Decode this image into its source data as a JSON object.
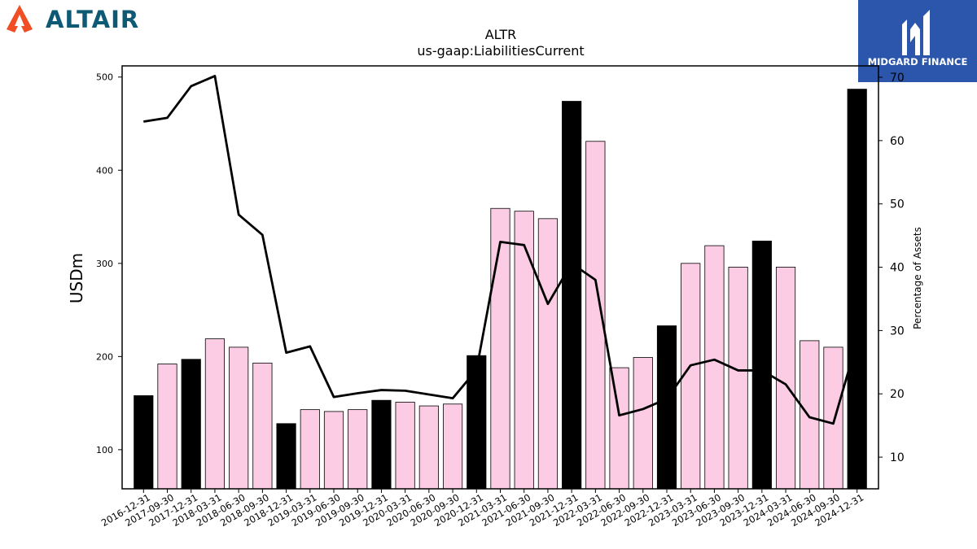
{
  "logos": {
    "left": {
      "text": "ALTAIR",
      "color": "#0e5a75",
      "icon_color": "#f04e23"
    },
    "right": {
      "text": "MIDGARD FINANCE",
      "bg_color": "#2b56ab"
    }
  },
  "chart_data": {
    "type": "bar",
    "title": "ALTR",
    "subtitle": "us-gaap:LiabilitiesCurrent",
    "ylabel": "USDm",
    "y2label": "Percentage of Assets",
    "ylim": [
      58,
      512
    ],
    "y2lim": [
      5,
      71.8
    ],
    "yticks": [
      100,
      200,
      300,
      400,
      500
    ],
    "y2ticks": [
      10,
      20,
      30,
      40,
      50,
      60,
      70
    ],
    "categories": [
      "2016-12-31",
      "2017-09-30",
      "2017-12-31",
      "2018-03-31",
      "2018-06-30",
      "2018-09-30",
      "2018-12-31",
      "2019-03-31",
      "2019-06-30",
      "2019-09-30",
      "2019-12-31",
      "2020-03-31",
      "2020-06-30",
      "2020-09-30",
      "2020-12-31",
      "2021-03-31",
      "2021-06-30",
      "2021-09-30",
      "2021-12-31",
      "2022-03-31",
      "2022-06-30",
      "2022-09-30",
      "2022-12-31",
      "2023-03-31",
      "2023-06-30",
      "2023-09-30",
      "2023-12-31",
      "2024-03-31",
      "2024-06-30",
      "2024-09-30",
      "2024-12-31"
    ],
    "series": [
      {
        "type": "bar",
        "axis": "left",
        "values": [
          158,
          192,
          197,
          219,
          210,
          193,
          128,
          143,
          141,
          143,
          153,
          151,
          147,
          149,
          201,
          359,
          356,
          348,
          474,
          431,
          188,
          199,
          233,
          300,
          319,
          296,
          324,
          296,
          217,
          210,
          487
        ],
        "colors": [
          "#000000",
          "#fccce4",
          "#000000",
          "#fccce4",
          "#fccce4",
          "#fccce4",
          "#000000",
          "#fccce4",
          "#fccce4",
          "#fccce4",
          "#000000",
          "#fccce4",
          "#fccce4",
          "#fccce4",
          "#000000",
          "#fccce4",
          "#fccce4",
          "#fccce4",
          "#000000",
          "#fccce4",
          "#fccce4",
          "#fccce4",
          "#000000",
          "#fccce4",
          "#fccce4",
          "#fccce4",
          "#000000",
          "#fccce4",
          "#fccce4",
          "#fccce4",
          "#000000"
        ]
      },
      {
        "type": "line",
        "axis": "right",
        "color": "#000000",
        "values": [
          63.0,
          63.6,
          68.6,
          70.2,
          48.3,
          45.1,
          26.5,
          27.5,
          19.5,
          20.1,
          20.6,
          20.5,
          19.9,
          19.3,
          23.8,
          44.0,
          43.5,
          34.2,
          40.6,
          38.0,
          16.6,
          17.6,
          19.2,
          24.5,
          25.4,
          23.7,
          23.7,
          21.5,
          16.3,
          15.3,
          28.3
        ]
      }
    ],
    "grid": false
  }
}
